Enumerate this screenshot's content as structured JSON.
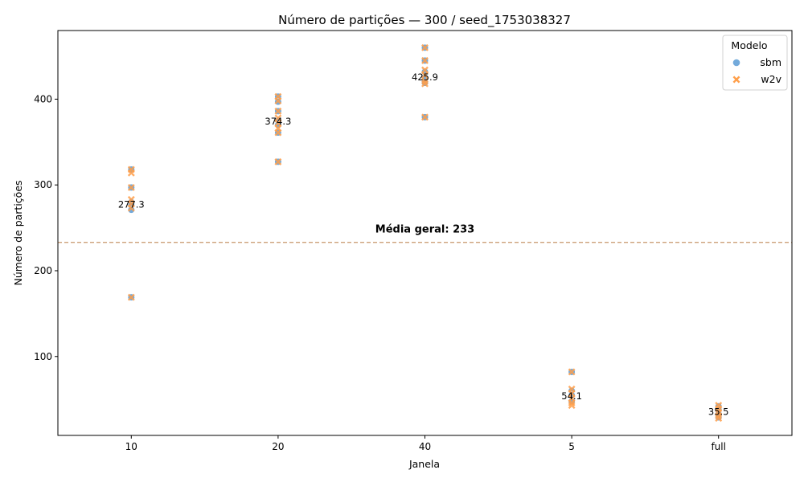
{
  "chart_data": {
    "type": "scatter",
    "title": "Número de partições — 300 / seed_1753038327",
    "xlabel": "Janela",
    "ylabel": "Número de partições",
    "categories": [
      "10",
      "20",
      "40",
      "5",
      "full"
    ],
    "ylim": [
      8,
      480
    ],
    "yticks": [
      100,
      200,
      300,
      400
    ],
    "grid": false,
    "legend": {
      "title": "Modelo",
      "placement": "top-right",
      "entries": [
        "sbm",
        "w2v"
      ]
    },
    "series": [
      {
        "name": "sbm",
        "color": "#5b9bd5",
        "marker": "circle",
        "points": [
          {
            "x": "10",
            "y": 318
          },
          {
            "x": "10",
            "y": 297
          },
          {
            "x": "10",
            "y": 280
          },
          {
            "x": "10",
            "y": 276
          },
          {
            "x": "10",
            "y": 271
          },
          {
            "x": "10",
            "y": 169
          },
          {
            "x": "20",
            "y": 403
          },
          {
            "x": "20",
            "y": 397
          },
          {
            "x": "20",
            "y": 386
          },
          {
            "x": "20",
            "y": 375
          },
          {
            "x": "20",
            "y": 370
          },
          {
            "x": "20",
            "y": 361
          },
          {
            "x": "20",
            "y": 327
          },
          {
            "x": "40",
            "y": 460
          },
          {
            "x": "40",
            "y": 445
          },
          {
            "x": "40",
            "y": 432
          },
          {
            "x": "40",
            "y": 425
          },
          {
            "x": "40",
            "y": 419
          },
          {
            "x": "40",
            "y": 379
          },
          {
            "x": "5",
            "y": 82
          },
          {
            "x": "5",
            "y": 60
          },
          {
            "x": "5",
            "y": 55
          },
          {
            "x": "5",
            "y": 48
          },
          {
            "x": "full",
            "y": 42
          },
          {
            "x": "full",
            "y": 38
          },
          {
            "x": "full",
            "y": 33
          },
          {
            "x": "full",
            "y": 29
          }
        ]
      },
      {
        "name": "w2v",
        "color": "#ff9f4a",
        "marker": "x",
        "points": [
          {
            "x": "10",
            "y": 318
          },
          {
            "x": "10",
            "y": 314
          },
          {
            "x": "10",
            "y": 297
          },
          {
            "x": "10",
            "y": 283
          },
          {
            "x": "10",
            "y": 278
          },
          {
            "x": "10",
            "y": 273
          },
          {
            "x": "10",
            "y": 169
          },
          {
            "x": "20",
            "y": 403
          },
          {
            "x": "20",
            "y": 398
          },
          {
            "x": "20",
            "y": 386
          },
          {
            "x": "20",
            "y": 378
          },
          {
            "x": "20",
            "y": 372
          },
          {
            "x": "20",
            "y": 366
          },
          {
            "x": "20",
            "y": 361
          },
          {
            "x": "20",
            "y": 327
          },
          {
            "x": "40",
            "y": 460
          },
          {
            "x": "40",
            "y": 445
          },
          {
            "x": "40",
            "y": 434
          },
          {
            "x": "40",
            "y": 428
          },
          {
            "x": "40",
            "y": 421
          },
          {
            "x": "40",
            "y": 418
          },
          {
            "x": "40",
            "y": 379
          },
          {
            "x": "5",
            "y": 82
          },
          {
            "x": "5",
            "y": 62
          },
          {
            "x": "5",
            "y": 57
          },
          {
            "x": "5",
            "y": 51
          },
          {
            "x": "5",
            "y": 46
          },
          {
            "x": "5",
            "y": 43
          },
          {
            "x": "full",
            "y": 43
          },
          {
            "x": "full",
            "y": 39
          },
          {
            "x": "full",
            "y": 35
          },
          {
            "x": "full",
            "y": 31
          },
          {
            "x": "full",
            "y": 28
          }
        ]
      }
    ],
    "category_means": [
      {
        "x": "10",
        "y": 277.3,
        "label": "277.3"
      },
      {
        "x": "20",
        "y": 374.3,
        "label": "374.3"
      },
      {
        "x": "40",
        "y": 425.9,
        "label": "425.9"
      },
      {
        "x": "5",
        "y": 54.1,
        "label": "54.1"
      },
      {
        "x": "full",
        "y": 35.5,
        "label": "35.5"
      }
    ],
    "overall_mean": {
      "y": 233,
      "label": "Média geral: 233",
      "color": "#c8966b",
      "style": "dashed"
    }
  }
}
